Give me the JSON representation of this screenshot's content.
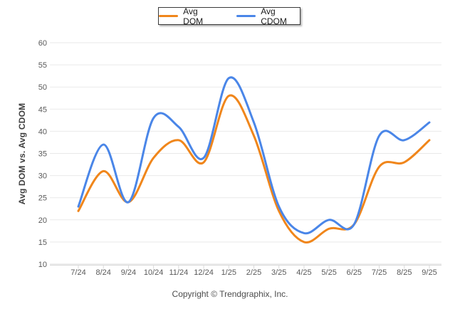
{
  "footer": {
    "copyright": "Copyright © Trendgraphix, Inc."
  },
  "chart_data": {
    "type": "line",
    "title": "",
    "xlabel": "",
    "ylabel": "Avg DOM vs. Avg CDOM",
    "ylim": [
      10,
      60
    ],
    "yticks": [
      10,
      15,
      20,
      25,
      30,
      35,
      40,
      45,
      50,
      55,
      60
    ],
    "grid": true,
    "smooth": true,
    "legend_position": "top-center",
    "categories": [
      "7/24",
      "8/24",
      "9/24",
      "10/24",
      "11/24",
      "12/24",
      "1/25",
      "2/25",
      "3/25",
      "4/25",
      "5/25",
      "6/25",
      "7/25",
      "8/25",
      "9/25"
    ],
    "series": [
      {
        "name": "Avg DOM",
        "color": "#f0861b",
        "values": [
          22,
          31,
          24,
          34,
          38,
          33,
          48,
          39,
          22,
          15,
          18,
          19,
          32,
          33,
          38
        ]
      },
      {
        "name": "Avg CDOM",
        "color": "#4a86e8",
        "values": [
          23,
          37,
          24,
          43,
          41,
          34,
          52,
          42,
          23,
          17,
          20,
          19,
          39,
          38,
          42
        ]
      }
    ]
  }
}
